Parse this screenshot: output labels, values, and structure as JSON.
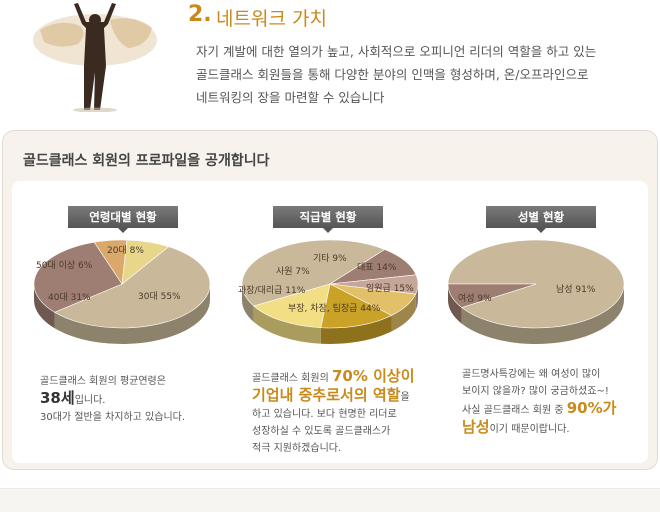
{
  "header": {
    "section_number": "2.",
    "section_title": "네트워크 가치",
    "intro_lines": [
      "자기 계발에 대한 열의가 높고, 사회적으로 오피니언 리더의 역할을 하고 있는",
      "골드클래스 회원들을 통해 다양한 분야의 인맥을 형성하며, 온/오프라인으로",
      "네트워킹의 장을 마련할 수 있습니다"
    ]
  },
  "panel": {
    "title": "골드클래스 회원의 프로파일을 공개합니다"
  },
  "columns": {
    "age": {
      "tag": "연령대별 현황",
      "desc_line1": "골드클래스 회원의 평균연령은",
      "desc_big": "38세",
      "desc_line2_tail": "입니다.",
      "desc_line3": "30대가 절반을 차지하고 있습니다."
    },
    "rank": {
      "tag": "직급별 현황",
      "desc_line1_pre": "골드클래스 회원의 ",
      "desc_big1": "70% 이상이",
      "desc_big2": "기업내 중추로서의 역할",
      "desc_line2_tail": "을",
      "desc_line3": "하고 있습니다. 보다 현명한 리더로",
      "desc_line4": "성장하실 수 있도록 골드클래스가",
      "desc_line5": "적극 지원하겠습니다."
    },
    "gender": {
      "tag": "성별 현황",
      "desc_line1": "골드명사특강에는 왜 여성이 많이",
      "desc_line2": "보이지 않을까? 많이 궁금하셨죠~!",
      "desc_line3_pre": "사실 골드클래스 회원 중 ",
      "desc_big1": "90%가",
      "desc_big2": "남성",
      "desc_line4_tail": "이기 때문이랍니다."
    }
  },
  "chart_data": [
    {
      "type": "pie",
      "categories": [
        "30대",
        "40대",
        "50대 이상",
        "20대"
      ],
      "values": [
        55,
        31,
        6,
        8
      ],
      "labels": [
        "30대 55%",
        "40대 31%",
        "50대 이상 6%",
        "20대 8%"
      ],
      "colors": [
        "#c9b99a",
        "#9e7d72",
        "#d9a86a",
        "#e8d68a"
      ]
    },
    {
      "type": "pie",
      "categories": [
        "부장, 차장, 팀장급",
        "과장/대리급",
        "사원",
        "기타",
        "대표",
        "임원급"
      ],
      "values": [
        44,
        11,
        7,
        9,
        14,
        15
      ],
      "labels": [
        "부장, 차장, 팀장급 44%",
        "과장/대리급 11%",
        "사원 7%",
        "기타 9%",
        "대표 14%",
        "임원급 15%"
      ],
      "colors": [
        "#c9b99a",
        "#9e7d72",
        "#c7a69a",
        "#e2c06a",
        "#c9a227",
        "#f2df85"
      ]
    },
    {
      "type": "pie",
      "categories": [
        "남성",
        "여성"
      ],
      "values": [
        91,
        9
      ],
      "labels": [
        "남성 91%",
        "여성 9%"
      ],
      "colors": [
        "#c9b99a",
        "#9e7d72"
      ]
    }
  ]
}
